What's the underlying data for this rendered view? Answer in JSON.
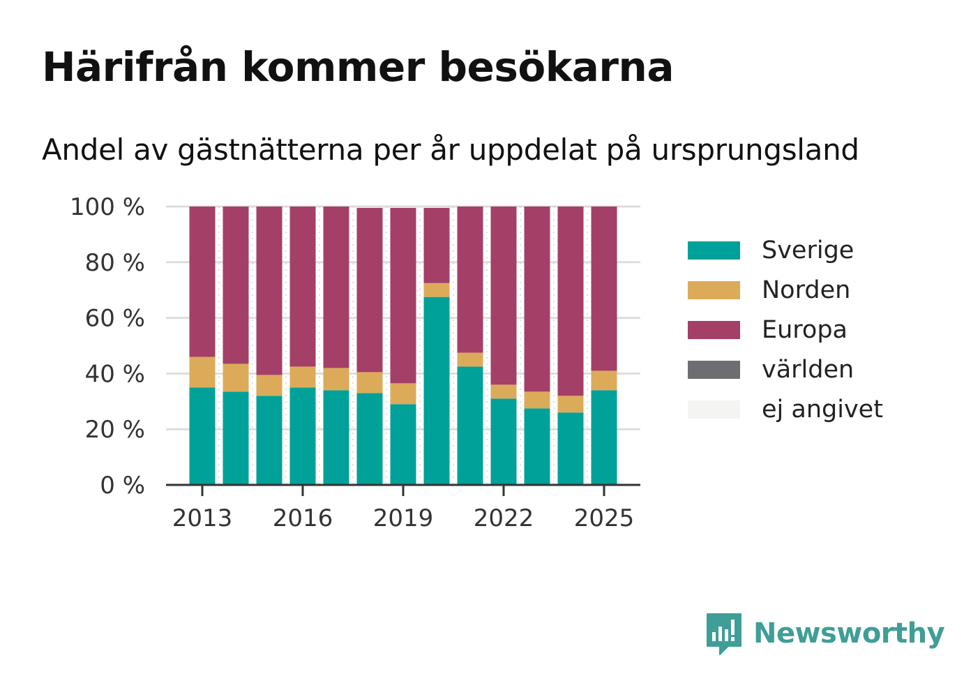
{
  "title": "Härifrån kommer besökarna",
  "subtitle": "Andel av gästnätterna per år uppdelat på ursprungsland",
  "brand": {
    "name": "Newsworthy",
    "icon": "newsworthy-logo-icon",
    "color": "#3f9e96"
  },
  "chart_data": {
    "type": "bar",
    "stacked": true,
    "x": [
      2013,
      2014,
      2015,
      2016,
      2017,
      2018,
      2019,
      2020,
      2021,
      2022,
      2023,
      2024,
      2025
    ],
    "x_ticks": [
      "2013",
      "2016",
      "2019",
      "2022",
      "2025"
    ],
    "y_ticks": [
      "0 %",
      "20 %",
      "40 %",
      "60 %",
      "80 %",
      "100 %"
    ],
    "ylim": [
      0,
      100
    ],
    "grid": true,
    "legend_position": "right",
    "series": [
      {
        "name": "Sverige",
        "color": "#00a199",
        "values": [
          35,
          33.5,
          32,
          35,
          34,
          33,
          29,
          67.5,
          42.5,
          31,
          27.5,
          26,
          34
        ]
      },
      {
        "name": "Norden",
        "color": "#dcab5a",
        "values": [
          11,
          10,
          7.5,
          7.5,
          8,
          7.5,
          7.5,
          5,
          5,
          5,
          6,
          6,
          7
        ]
      },
      {
        "name": "Europa",
        "color": "#a43f68",
        "values": [
          54,
          56.5,
          60.5,
          57.5,
          58,
          59,
          63,
          27,
          52.5,
          64,
          66.5,
          68,
          59
        ]
      },
      {
        "name": "världen",
        "color": "#6d6d72",
        "values": [
          0,
          0,
          0,
          0,
          0,
          0,
          0,
          0,
          0,
          0,
          0,
          0,
          0
        ]
      },
      {
        "name": "ej angivet",
        "color": "#f4f4f2",
        "values": [
          0,
          0,
          0,
          0,
          0,
          0,
          0,
          0,
          0,
          0,
          0,
          0,
          0
        ]
      }
    ]
  }
}
